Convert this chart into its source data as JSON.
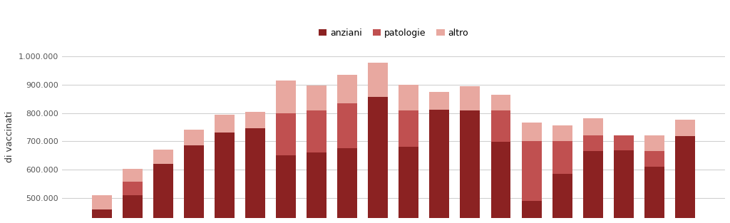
{
  "anziani": [
    460000,
    510000,
    620000,
    685000,
    730000,
    745000,
    650000,
    660000,
    675000,
    857000,
    680000,
    812000,
    808000,
    698000,
    490000,
    585000,
    665000,
    668000,
    610000,
    718000
  ],
  "patologie": [
    0,
    47000,
    0,
    0,
    0,
    0,
    150000,
    148000,
    160000,
    0,
    130000,
    0,
    0,
    110000,
    210000,
    115000,
    55000,
    52000,
    57000,
    0
  ],
  "altro": [
    50000,
    47000,
    50000,
    55000,
    63000,
    60000,
    113000,
    89000,
    98000,
    120000,
    88000,
    63000,
    87000,
    57000,
    65000,
    57000,
    62000,
    0,
    55000,
    57000
  ],
  "color_anziani": "#8B2222",
  "color_patologie": "#C05050",
  "color_altro": "#E8A8A0",
  "ylabel": "di vaccinati",
  "ylim_min": 430000,
  "ylim_max": 1000000,
  "yticks": [
    500000,
    600000,
    700000,
    800000,
    900000,
    1000000
  ],
  "ytick_labels": [
    "500.000",
    "600.000",
    "700.000",
    "800.000",
    "900.000",
    "1.000.000"
  ],
  "legend_labels": [
    "anziani",
    "patologie",
    "altro"
  ],
  "bar_width": 0.65,
  "background_color": "#FFFFFF",
  "grid_color": "#D0D0D0"
}
